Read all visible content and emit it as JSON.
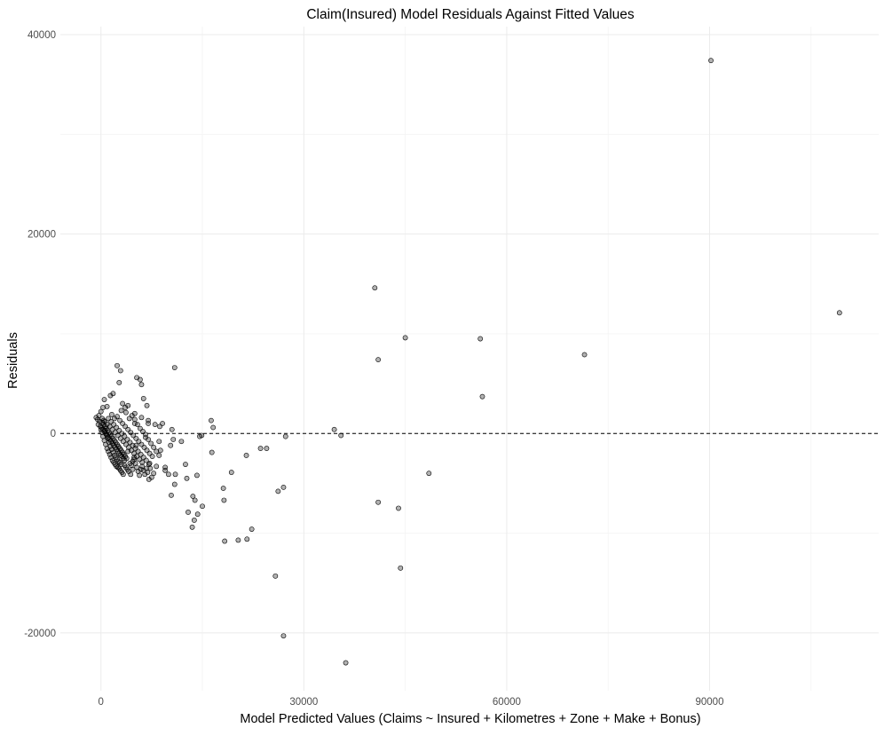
{
  "chart_data": {
    "type": "scatter",
    "title": "Claim(Insured) Model Residuals Against Fitted Values",
    "xlabel": "Model Predicted Values (Claims ~ Insured + Kilometres + Zone + Make + Bonus)",
    "ylabel": "Residuals",
    "xlim": [
      -6000,
      115000
    ],
    "ylim": [
      -25800,
      40800
    ],
    "x_ticks": [
      0,
      30000,
      60000,
      90000
    ],
    "x_tick_labels": [
      "0",
      "30000",
      "60000",
      "90000"
    ],
    "y_ticks": [
      -20000,
      0,
      20000,
      40000
    ],
    "y_tick_labels": [
      "-20000",
      "0",
      "20000",
      "40000"
    ],
    "grid": true,
    "reference_line": {
      "y": 0,
      "style": "dashed",
      "color": "#000000"
    },
    "point_color": "#000000",
    "point_opacity": 0.55,
    "points": [
      [
        90200,
        37400
      ],
      [
        109200,
        12100
      ],
      [
        71500,
        7900
      ],
      [
        56100,
        9500
      ],
      [
        56400,
        3700
      ],
      [
        45000,
        9600
      ],
      [
        40500,
        14600
      ],
      [
        41000,
        7400
      ],
      [
        48500,
        -4000
      ],
      [
        41000,
        -6900
      ],
      [
        44000,
        -7500
      ],
      [
        44300,
        -13500
      ],
      [
        36200,
        -23000
      ],
      [
        27000,
        -20300
      ],
      [
        34500,
        400
      ],
      [
        35500,
        -200
      ],
      [
        27300,
        -300
      ],
      [
        26200,
        -5800
      ],
      [
        27000,
        -5400
      ],
      [
        25800,
        -14300
      ],
      [
        22300,
        -9600
      ],
      [
        21600,
        -10600
      ],
      [
        20300,
        -10700
      ],
      [
        18300,
        -10800
      ],
      [
        23600,
        -1500
      ],
      [
        24500,
        -1500
      ],
      [
        21500,
        -2200
      ],
      [
        19300,
        -3900
      ],
      [
        18100,
        -5500
      ],
      [
        18200,
        -6700
      ],
      [
        15000,
        -7300
      ],
      [
        14900,
        -200
      ],
      [
        14600,
        -300
      ],
      [
        16300,
        1300
      ],
      [
        16600,
        600
      ],
      [
        16400,
        -1900
      ],
      [
        14200,
        -4200
      ],
      [
        13600,
        -6300
      ],
      [
        13900,
        -6700
      ],
      [
        14300,
        -8100
      ],
      [
        13800,
        -8700
      ],
      [
        13500,
        -9400
      ],
      [
        12900,
        -7900
      ],
      [
        12700,
        -4500
      ],
      [
        12500,
        -3100
      ],
      [
        10900,
        6600
      ],
      [
        11900,
        -800
      ],
      [
        11000,
        -4100
      ],
      [
        10900,
        -5100
      ],
      [
        10400,
        -6200
      ],
      [
        10000,
        -4100
      ],
      [
        9500,
        -3400
      ],
      [
        9500,
        -3700
      ],
      [
        10300,
        -1200
      ],
      [
        10700,
        -600
      ],
      [
        10500,
        400
      ],
      [
        9100,
        1000
      ],
      [
        8700,
        700
      ],
      [
        8600,
        -800
      ],
      [
        8800,
        -1700
      ],
      [
        8200,
        -3300
      ],
      [
        7800,
        -4000
      ],
      [
        7500,
        -4400
      ],
      [
        7100,
        -4600
      ],
      [
        7200,
        -3000
      ],
      [
        6300,
        3500
      ],
      [
        6800,
        2800
      ],
      [
        7000,
        1000
      ],
      [
        6600,
        -400
      ],
      [
        6000,
        4900
      ],
      [
        5800,
        5400
      ],
      [
        5300,
        5600
      ],
      [
        5000,
        1000
      ],
      [
        5200,
        -1200
      ],
      [
        4900,
        -2400
      ],
      [
        4700,
        -3600
      ],
      [
        4400,
        -4100
      ],
      [
        4000,
        -1800
      ],
      [
        3700,
        2100
      ],
      [
        3600,
        2600
      ],
      [
        3200,
        3000
      ],
      [
        2400,
        6800
      ],
      [
        2900,
        6300
      ],
      [
        1800,
        4000
      ],
      [
        1400,
        3800
      ],
      [
        2700,
        5100
      ],
      [
        900,
        2700
      ],
      [
        500,
        3400
      ],
      [
        300,
        2600
      ],
      [
        0,
        2200
      ],
      [
        -300,
        1800
      ],
      [
        -500,
        1400
      ],
      [
        -400,
        900
      ],
      [
        -700,
        1600
      ],
      [
        200,
        1100
      ],
      [
        400,
        900
      ],
      [
        600,
        700
      ],
      [
        800,
        500
      ],
      [
        1000,
        300
      ],
      [
        1200,
        100
      ],
      [
        1400,
        -100
      ],
      [
        1600,
        -300
      ],
      [
        1800,
        -500
      ],
      [
        2000,
        -700
      ],
      [
        2200,
        -900
      ],
      [
        2400,
        -1100
      ],
      [
        2600,
        -1300
      ],
      [
        2800,
        -1500
      ],
      [
        3000,
        -1700
      ],
      [
        3200,
        -1900
      ],
      [
        3400,
        -2100
      ],
      [
        3600,
        -2300
      ],
      [
        3800,
        -2500
      ],
      [
        100,
        600
      ],
      [
        300,
        400
      ],
      [
        500,
        200
      ],
      [
        700,
        0
      ],
      [
        900,
        -200
      ],
      [
        1100,
        -400
      ],
      [
        1300,
        -600
      ],
      [
        1500,
        -800
      ],
      [
        1700,
        -1000
      ],
      [
        1900,
        -1200
      ],
      [
        2100,
        -1400
      ],
      [
        2300,
        -1600
      ],
      [
        2500,
        -1800
      ],
      [
        2700,
        -2000
      ],
      [
        2900,
        -2200
      ],
      [
        3100,
        -2300
      ],
      [
        3300,
        -2500
      ],
      [
        3500,
        -2700
      ],
      [
        600,
        1200
      ],
      [
        900,
        900
      ],
      [
        1300,
        700
      ],
      [
        1700,
        400
      ],
      [
        2100,
        100
      ],
      [
        2500,
        -200
      ],
      [
        2900,
        -500
      ],
      [
        3300,
        -800
      ],
      [
        3700,
        -1100
      ],
      [
        4100,
        -1400
      ],
      [
        4500,
        -1700
      ],
      [
        4900,
        -2000
      ],
      [
        5300,
        -2300
      ],
      [
        5700,
        -2600
      ],
      [
        6100,
        -2900
      ],
      [
        1100,
        1500
      ],
      [
        1500,
        1200
      ],
      [
        1900,
        900
      ],
      [
        2300,
        600
      ],
      [
        2700,
        300
      ],
      [
        3100,
        0
      ],
      [
        3500,
        -300
      ],
      [
        3900,
        -600
      ],
      [
        4300,
        -900
      ],
      [
        4700,
        -1200
      ],
      [
        5100,
        -1500
      ],
      [
        5500,
        -1800
      ],
      [
        5900,
        -2100
      ],
      [
        6300,
        -2400
      ],
      [
        6700,
        -2700
      ],
      [
        1600,
        1900
      ],
      [
        2000,
        1500
      ],
      [
        2400,
        1700
      ],
      [
        2800,
        1300
      ],
      [
        3200,
        1000
      ],
      [
        3600,
        700
      ],
      [
        4000,
        400
      ],
      [
        4400,
        100
      ],
      [
        4800,
        -200
      ],
      [
        5200,
        -500
      ],
      [
        5600,
        -800
      ],
      [
        6000,
        -1100
      ],
      [
        6400,
        -1400
      ],
      [
        6800,
        -1700
      ],
      [
        7200,
        -2000
      ],
      [
        7600,
        -2300
      ],
      [
        200,
        1500
      ],
      [
        400,
        1300
      ],
      [
        600,
        300
      ],
      [
        800,
        -100
      ],
      [
        1000,
        -500
      ],
      [
        1200,
        -900
      ],
      [
        1400,
        -1300
      ],
      [
        1600,
        -1600
      ],
      [
        1800,
        -1900
      ],
      [
        2000,
        -2200
      ],
      [
        2200,
        -2400
      ],
      [
        2400,
        -2600
      ],
      [
        2600,
        -2800
      ],
      [
        2800,
        -2900
      ],
      [
        3000,
        -3100
      ],
      [
        4200,
        1500
      ],
      [
        4600,
        1800
      ],
      [
        5000,
        1400
      ],
      [
        5400,
        900
      ],
      [
        5800,
        500
      ],
      [
        6200,
        200
      ],
      [
        6600,
        -100
      ],
      [
        7000,
        -600
      ],
      [
        7400,
        -1000
      ],
      [
        7800,
        -1400
      ],
      [
        8200,
        -1800
      ],
      [
        8600,
        -2200
      ],
      [
        3000,
        2300
      ],
      [
        4000,
        2800
      ],
      [
        5000,
        2000
      ],
      [
        6000,
        1600
      ],
      [
        7000,
        1300
      ],
      [
        8000,
        900
      ],
      [
        -200,
        1200
      ],
      [
        -100,
        700
      ],
      [
        0,
        400
      ],
      [
        100,
        100
      ],
      [
        300,
        -300
      ],
      [
        500,
        -700
      ],
      [
        700,
        -1100
      ],
      [
        900,
        -1500
      ],
      [
        1100,
        -1800
      ],
      [
        1300,
        -2100
      ],
      [
        1500,
        -2400
      ],
      [
        1700,
        -2700
      ],
      [
        1900,
        -2900
      ],
      [
        2100,
        -3100
      ],
      [
        2300,
        -3300
      ],
      [
        2500,
        -3400
      ],
      [
        2700,
        -3500
      ],
      [
        2900,
        -3700
      ],
      [
        3100,
        -3900
      ],
      [
        3300,
        -4100
      ],
      [
        3500,
        -3200
      ],
      [
        3700,
        -3400
      ],
      [
        3900,
        -3600
      ],
      [
        4100,
        -3800
      ],
      [
        4300,
        -3000
      ],
      [
        4500,
        -3200
      ],
      [
        4700,
        -2800
      ],
      [
        4900,
        -2600
      ],
      [
        5100,
        -3000
      ],
      [
        5300,
        -3400
      ],
      [
        5500,
        -3800
      ],
      [
        5700,
        -4200
      ],
      [
        5900,
        -3600
      ],
      [
        6100,
        -3300
      ],
      [
        6300,
        -3700
      ],
      [
        6500,
        -4100
      ],
      [
        6700,
        -3500
      ],
      [
        6900,
        -3900
      ],
      [
        7100,
        -3100
      ],
      [
        7300,
        -3500
      ]
    ]
  }
}
